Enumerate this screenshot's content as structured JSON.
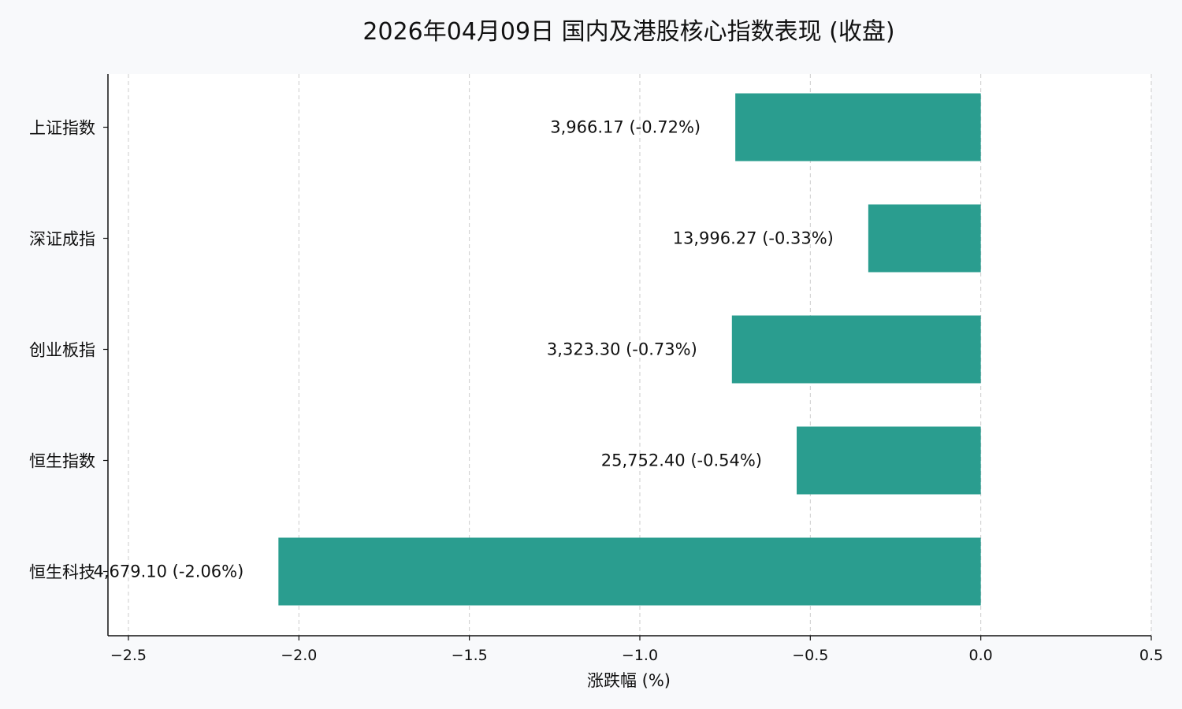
{
  "chart_data": {
    "type": "bar",
    "orientation": "horizontal",
    "title": "2026年04月09日 国内及港股核心指数表现 (收盘)",
    "xlabel": "涨跌幅 (%)",
    "ylabel": "",
    "xlim": [
      -2.56,
      0.5
    ],
    "x_ticks": [
      -2.5,
      -2.0,
      -1.5,
      -1.0,
      -0.5,
      0.0,
      0.5
    ],
    "x_tick_labels": [
      "−2.5",
      "−2.0",
      "−1.5",
      "−1.0",
      "−0.5",
      "0.0",
      "0.5"
    ],
    "grid": "vertical-dashed",
    "categories": [
      "上证指数",
      "深证成指",
      "创业板指",
      "恒生指数",
      "恒生科技"
    ],
    "values": [
      -0.72,
      -0.33,
      -0.73,
      -0.54,
      -2.06
    ],
    "value_labels": [
      "3,966.17 (-0.72%)",
      "13,996.27 (-0.33%)",
      "3,323.30 (-0.73%)",
      "25,752.40 (-0.54%)",
      "4,679.10 (-2.06%)"
    ],
    "bar_color": "#2a9d8f",
    "background_color": "#f8f9fb",
    "plot_background_color": "#ffffff",
    "axis_color": "#111111",
    "grid_color": "#cccccc"
  }
}
